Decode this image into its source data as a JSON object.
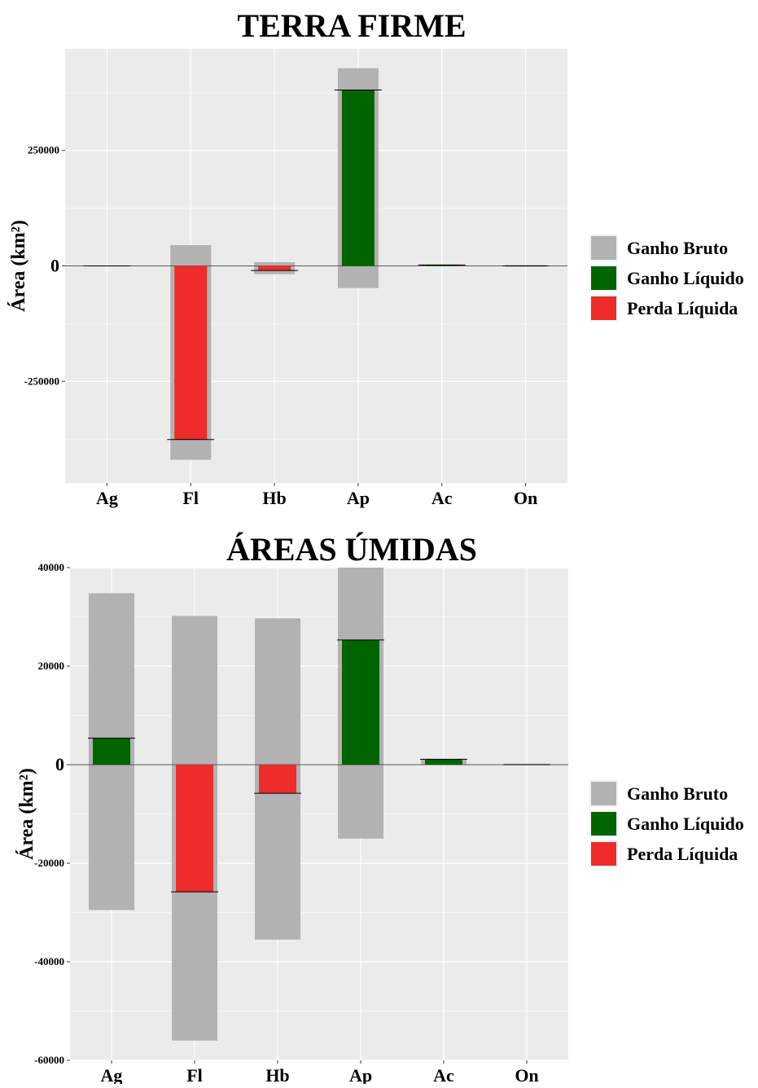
{
  "chart_data": [
    {
      "type": "bar",
      "title": "TERRA FIRME",
      "ylabel": "Área (km²)",
      "xlabel": "",
      "categories": [
        "Ag",
        "Fl",
        "Hb",
        "Ap",
        "Ac",
        "On"
      ],
      "ylim": [
        -470000,
        470000
      ],
      "yticks": [
        -250000,
        0,
        250000
      ],
      "ytick_labels": [
        "-250000",
        "0",
        "250000"
      ],
      "grid": true,
      "series": [
        {
          "name": "Ganho Bruto",
          "color": "#b2b2b2",
          "values": [
            [
              -1000,
              1000
            ],
            [
              -420000,
              45000
            ],
            [
              -18000,
              8000
            ],
            [
              -48000,
              428000
            ],
            [
              -1000,
              3000
            ],
            [
              -2000,
              2000
            ]
          ]
        },
        {
          "name": "Ganho Líquido",
          "color": "#006400",
          "values": [
            0,
            0,
            0,
            381000,
            2000,
            0
          ]
        },
        {
          "name": "Perda Líquida",
          "color": "#ee2c2c",
          "values": [
            0,
            -376000,
            -10000,
            0,
            0,
            0
          ]
        }
      ],
      "net_markers": [
        0,
        -376000,
        -10000,
        381000,
        2000,
        0
      ],
      "legend": {
        "position": "right",
        "entries": [
          "Ganho Bruto",
          "Ganho Líquido",
          "Perda Líquida"
        ]
      }
    },
    {
      "type": "bar",
      "title": "ÁREAS ÚMIDAS",
      "ylabel": "Área (km²)",
      "xlabel": "",
      "categories": [
        "Ag",
        "Fl",
        "Hb",
        "Ap",
        "Ac",
        "On"
      ],
      "ylim": [
        -60000,
        40000
      ],
      "yticks": [
        -60000,
        -40000,
        -20000,
        0,
        20000,
        40000
      ],
      "ytick_labels": [
        "-60000",
        "-40000",
        "-20000",
        "0",
        "20000",
        "40000"
      ],
      "grid": true,
      "series": [
        {
          "name": "Ganho Bruto",
          "color": "#b2b2b2",
          "values": [
            [
              -29500,
              34800
            ],
            [
              -56000,
              30200
            ],
            [
              -35500,
              29700
            ],
            [
              -15000,
              40000
            ],
            [
              0,
              1200
            ],
            [
              0,
              200
            ]
          ]
        },
        {
          "name": "Ganho Líquido",
          "color": "#006400",
          "values": [
            5400,
            0,
            0,
            25300,
            1100,
            0
          ]
        },
        {
          "name": "Perda Líquida",
          "color": "#ee2c2c",
          "values": [
            0,
            -25800,
            -5800,
            0,
            0,
            0
          ]
        }
      ],
      "net_markers": [
        5400,
        -25800,
        -5800,
        25300,
        1100,
        0
      ],
      "legend": {
        "position": "right",
        "entries": [
          "Ganho Bruto",
          "Ganho Líquido",
          "Perda Líquida"
        ]
      }
    }
  ]
}
